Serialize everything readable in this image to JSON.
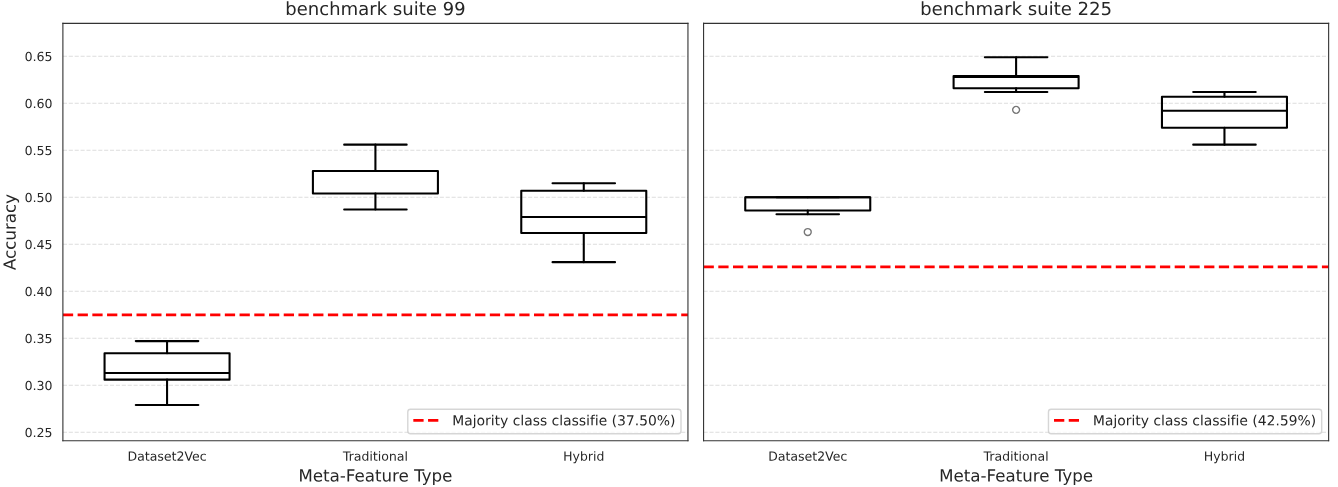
{
  "chart_data": [
    {
      "type": "box",
      "title": "benchmark suite 99",
      "xlabel": "Meta-Feature Type",
      "ylabel": "Accuracy",
      "categories": [
        "Dataset2Vec",
        "Traditional",
        "Hybrid"
      ],
      "boxes": [
        {
          "low": 0.279,
          "q1": 0.306,
          "median": 0.313,
          "q3": 0.334,
          "high": 0.347
        },
        {
          "low": 0.487,
          "q1": 0.504,
          "median": 0.528,
          "q3": 0.528,
          "high": 0.556
        },
        {
          "low": 0.431,
          "q1": 0.462,
          "median": 0.479,
          "q3": 0.507,
          "high": 0.515
        }
      ],
      "ylim": [
        0.241,
        0.685
      ],
      "yticks": [
        0.25,
        {
          "value": 0.3,
          "label": "0.30"
        },
        0.35,
        {
          "value": 0.4,
          "label": "0.40"
        },
        0.45,
        {
          "value": 0.5,
          "label": "0.50"
        },
        0.55,
        {
          "value": 0.6,
          "label": "0.60"
        },
        0.65
      ],
      "ref_lines": [
        {
          "axis": "y",
          "value": 0.375,
          "label": "Majority class classifie (37.50%)",
          "color": "#ff0000",
          "line_style": "dashed"
        }
      ],
      "grid": "y",
      "legend": "bottom right"
    },
    {
      "type": "box",
      "title": "benchmark suite 225",
      "xlabel": "Meta-Feature Type",
      "categories": [
        "Dataset2Vec",
        "Traditional",
        "Hybrid"
      ],
      "boxes": [
        {
          "low": 0.482,
          "q1": 0.486,
          "median": 0.5,
          "q3": 0.5,
          "high": 0.5,
          "outliers": [
            0.463
          ]
        },
        {
          "low": 0.612,
          "q1": 0.616,
          "median": 0.628,
          "q3": 0.629,
          "high": 0.649,
          "outliers": [
            0.593
          ]
        },
        {
          "low": 0.556,
          "q1": 0.574,
          "median": 0.592,
          "q3": 0.607,
          "high": 0.612
        }
      ],
      "ylim": [
        0.241,
        0.685
      ],
      "yticks": [
        0.25,
        0.3,
        0.35,
        0.4,
        0.45,
        0.5,
        0.55,
        0.6,
        0.65
      ],
      "tick_labels": "x",
      "ref_lines": [
        {
          "axis": "y",
          "value": 0.4259,
          "label": "Majority class classifie (42.59%)",
          "color": "#ff0000",
          "line_style": "dashed"
        }
      ],
      "grid": "y",
      "legend": "bottom right"
    }
  ]
}
